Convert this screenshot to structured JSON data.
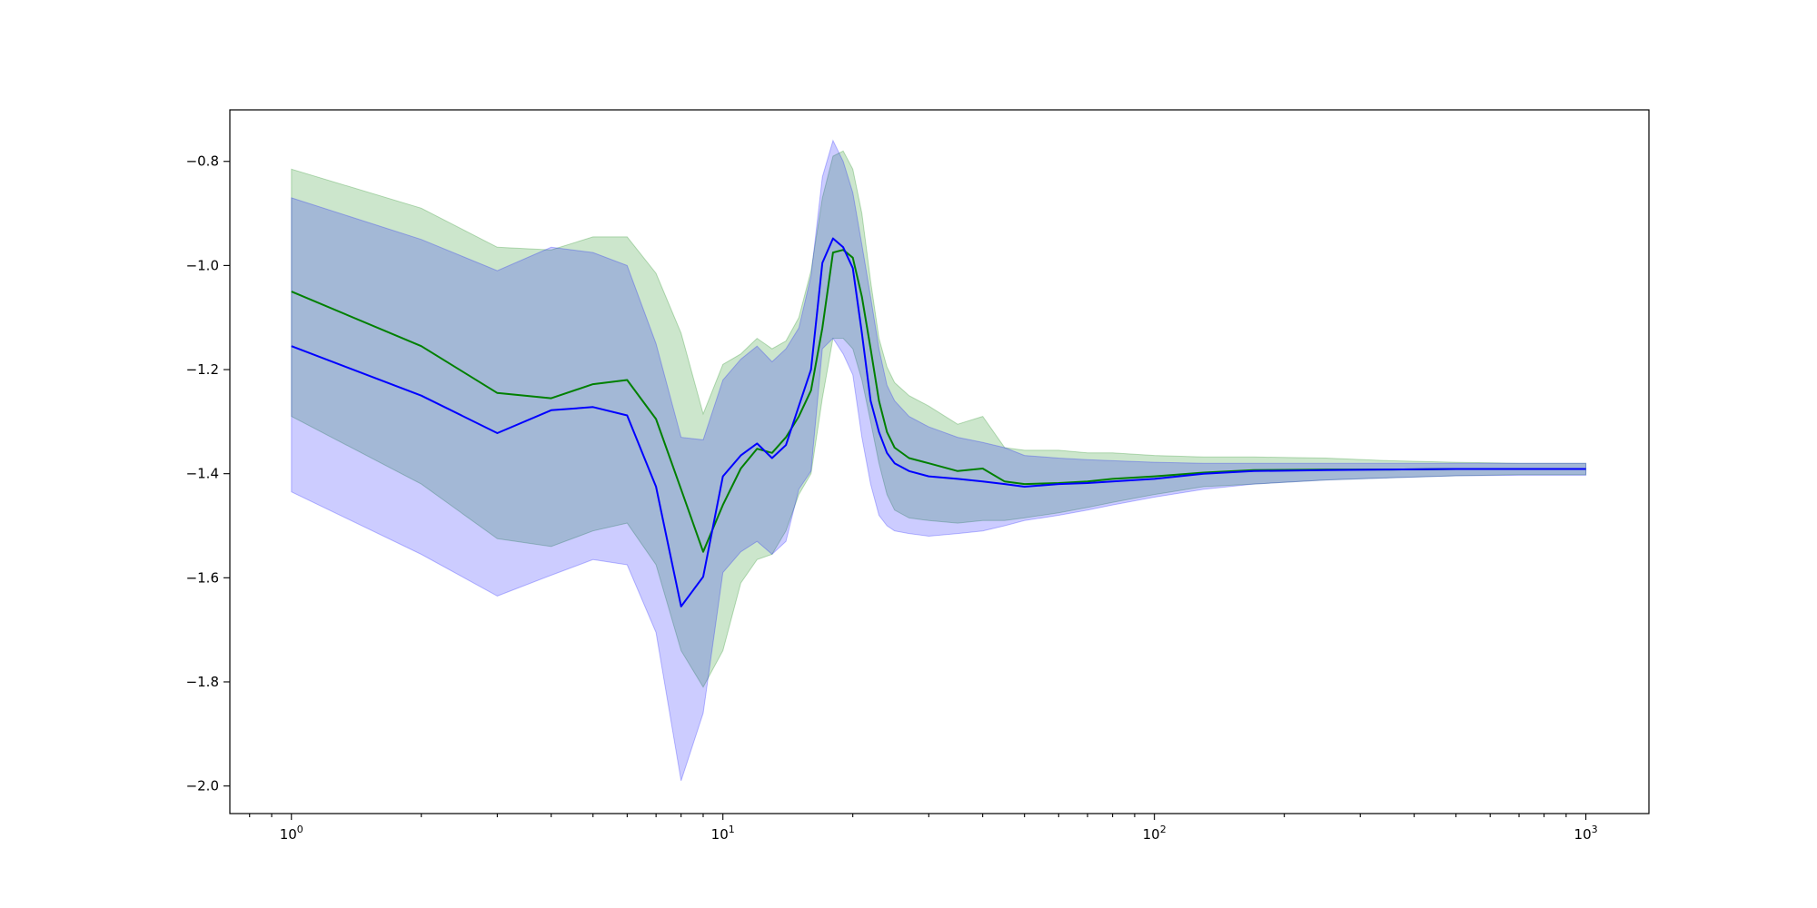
{
  "chart_data": {
    "type": "line",
    "title": "",
    "xlabel": "",
    "ylabel": "",
    "xscale": "log",
    "xlim": [
      0.72,
      1400
    ],
    "ylim": [
      -2.053,
      -0.701
    ],
    "x_ticks": [
      {
        "value": 1,
        "base": "10",
        "exp": "0"
      },
      {
        "value": 10,
        "base": "10",
        "exp": "1"
      },
      {
        "value": 100,
        "base": "10",
        "exp": "2"
      },
      {
        "value": 1000,
        "base": "10",
        "exp": "3"
      }
    ],
    "y_ticks": [
      {
        "value": -0.8,
        "label": "−0.8"
      },
      {
        "value": -1.0,
        "label": "−1.0"
      },
      {
        "value": -1.2,
        "label": "−1.2"
      },
      {
        "value": -1.4,
        "label": "−1.4"
      },
      {
        "value": -1.6,
        "label": "−1.6"
      },
      {
        "value": -1.8,
        "label": "−1.8"
      },
      {
        "value": -2.0,
        "label": "−2.0"
      }
    ],
    "grid": false,
    "legend": "none",
    "series": [
      {
        "color": "#008000",
        "band_color": "#008000",
        "x": [
          1,
          2,
          3,
          4,
          5,
          6,
          7,
          8,
          9,
          10,
          11,
          12,
          13,
          14,
          15,
          16,
          17,
          18,
          19,
          20,
          21,
          22,
          23,
          24,
          25,
          27,
          30,
          35,
          40,
          45,
          50,
          60,
          70,
          80,
          100,
          130,
          170,
          250,
          350,
          500,
          700,
          1000
        ],
        "y": [
          -1.05,
          -1.155,
          -1.245,
          -1.255,
          -1.228,
          -1.22,
          -1.295,
          -1.43,
          -1.55,
          -1.46,
          -1.39,
          -1.352,
          -1.36,
          -1.33,
          -1.29,
          -1.24,
          -1.12,
          -0.975,
          -0.97,
          -0.985,
          -1.06,
          -1.16,
          -1.26,
          -1.32,
          -1.35,
          -1.37,
          -1.38,
          -1.395,
          -1.39,
          -1.415,
          -1.42,
          -1.418,
          -1.415,
          -1.41,
          -1.405,
          -1.398,
          -1.393,
          -1.392,
          -1.392,
          -1.391,
          -1.391,
          -1.391
        ],
        "upper": [
          -0.815,
          -0.89,
          -0.965,
          -0.97,
          -0.945,
          -0.945,
          -1.015,
          -1.13,
          -1.285,
          -1.19,
          -1.17,
          -1.14,
          -1.16,
          -1.145,
          -1.1,
          -1.01,
          -0.87,
          -0.79,
          -0.78,
          -0.815,
          -0.9,
          -1.03,
          -1.14,
          -1.195,
          -1.225,
          -1.25,
          -1.27,
          -1.305,
          -1.29,
          -1.35,
          -1.355,
          -1.355,
          -1.36,
          -1.36,
          -1.365,
          -1.368,
          -1.368,
          -1.37,
          -1.375,
          -1.378,
          -1.38,
          -1.38
        ],
        "lower": [
          -1.29,
          -1.42,
          -1.525,
          -1.54,
          -1.51,
          -1.495,
          -1.575,
          -1.74,
          -1.81,
          -1.74,
          -1.61,
          -1.565,
          -1.555,
          -1.51,
          -1.44,
          -1.4,
          -1.255,
          -1.14,
          -1.14,
          -1.16,
          -1.22,
          -1.3,
          -1.38,
          -1.44,
          -1.47,
          -1.485,
          -1.49,
          -1.495,
          -1.49,
          -1.49,
          -1.485,
          -1.475,
          -1.465,
          -1.455,
          -1.44,
          -1.425,
          -1.42,
          -1.412,
          -1.408,
          -1.404,
          -1.402,
          -1.402
        ]
      },
      {
        "color": "#0000ff",
        "band_color": "#0000ff",
        "x": [
          1,
          2,
          3,
          4,
          5,
          6,
          7,
          8,
          9,
          10,
          11,
          12,
          13,
          14,
          15,
          16,
          17,
          18,
          19,
          20,
          21,
          22,
          23,
          24,
          25,
          27,
          30,
          35,
          40,
          45,
          50,
          60,
          70,
          80,
          100,
          130,
          170,
          250,
          350,
          500,
          700,
          1000
        ],
        "y": [
          -1.155,
          -1.25,
          -1.322,
          -1.278,
          -1.272,
          -1.288,
          -1.425,
          -1.655,
          -1.598,
          -1.405,
          -1.365,
          -1.342,
          -1.37,
          -1.345,
          -1.27,
          -1.2,
          -0.995,
          -0.948,
          -0.965,
          -1.005,
          -1.13,
          -1.26,
          -1.32,
          -1.36,
          -1.38,
          -1.395,
          -1.405,
          -1.41,
          -1.415,
          -1.42,
          -1.425,
          -1.42,
          -1.418,
          -1.415,
          -1.41,
          -1.4,
          -1.395,
          -1.393,
          -1.392,
          -1.391,
          -1.391,
          -1.391
        ],
        "upper": [
          -0.87,
          -0.95,
          -1.01,
          -0.965,
          -0.975,
          -1.0,
          -1.15,
          -1.33,
          -1.335,
          -1.22,
          -1.18,
          -1.155,
          -1.185,
          -1.16,
          -1.12,
          -1.02,
          -0.83,
          -0.76,
          -0.8,
          -0.86,
          -0.96,
          -1.06,
          -1.16,
          -1.23,
          -1.26,
          -1.29,
          -1.31,
          -1.33,
          -1.34,
          -1.35,
          -1.365,
          -1.37,
          -1.373,
          -1.375,
          -1.378,
          -1.38,
          -1.38,
          -1.38,
          -1.38,
          -1.38,
          -1.38,
          -1.38
        ],
        "lower": [
          -1.435,
          -1.555,
          -1.635,
          -1.595,
          -1.565,
          -1.575,
          -1.705,
          -1.99,
          -1.86,
          -1.59,
          -1.55,
          -1.53,
          -1.555,
          -1.53,
          -1.43,
          -1.395,
          -1.16,
          -1.14,
          -1.17,
          -1.21,
          -1.33,
          -1.42,
          -1.48,
          -1.5,
          -1.51,
          -1.515,
          -1.52,
          -1.515,
          -1.51,
          -1.5,
          -1.49,
          -1.48,
          -1.47,
          -1.46,
          -1.445,
          -1.43,
          -1.42,
          -1.412,
          -1.408,
          -1.404,
          -1.403,
          -1.403
        ]
      }
    ]
  }
}
